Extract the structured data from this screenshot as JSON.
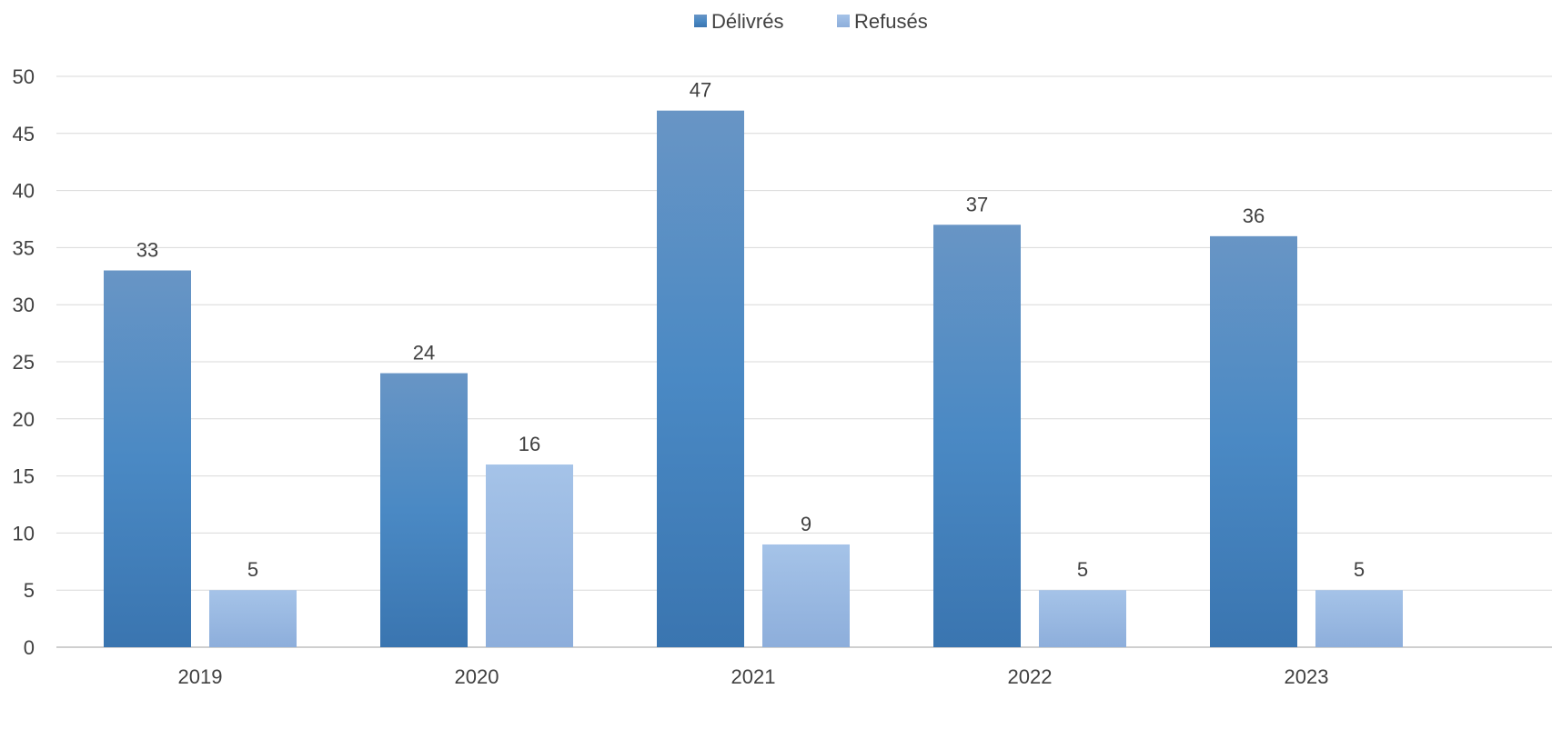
{
  "chart_data": {
    "type": "bar",
    "title": "",
    "xlabel": "",
    "ylabel": "",
    "categories": [
      "2019",
      "2020",
      "2021",
      "2022",
      "2023"
    ],
    "series": [
      {
        "name": "Délivrés",
        "values": [
          33,
          24,
          47,
          37,
          36
        ],
        "color": "#4a86c0"
      },
      {
        "name": "Refusés",
        "values": [
          5,
          16,
          9,
          5,
          5
        ],
        "color": "#9cbce3"
      }
    ],
    "ylim": [
      0,
      50
    ],
    "yticks": [
      0,
      5,
      10,
      15,
      20,
      25,
      30,
      35,
      40,
      45,
      50
    ],
    "grid": true,
    "legend_position": "top-center",
    "data_labels": true
  }
}
